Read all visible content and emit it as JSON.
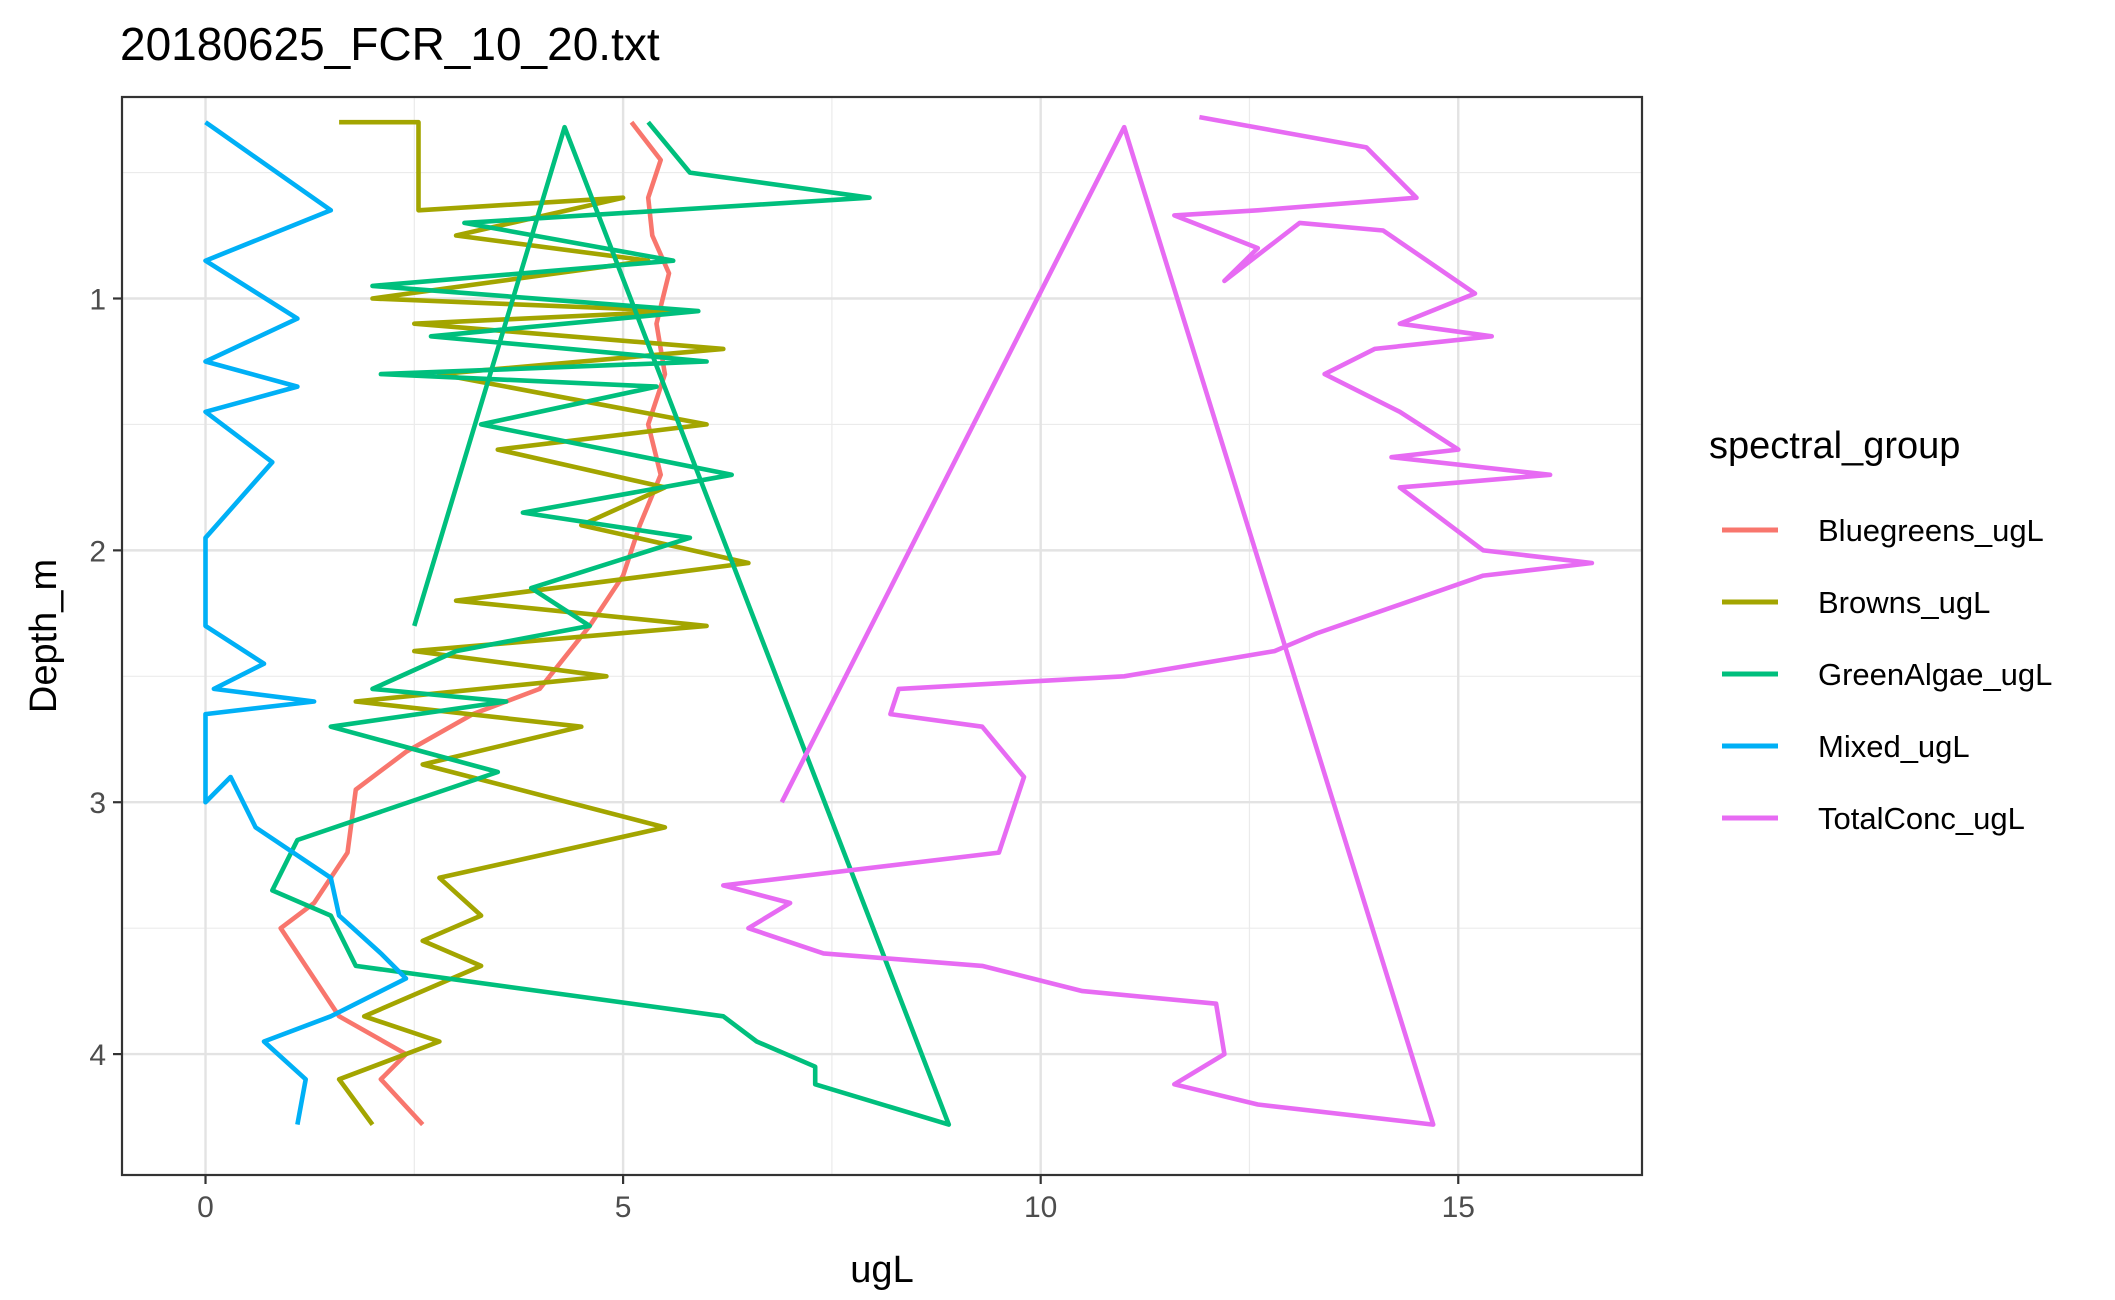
{
  "chart_data": {
    "type": "line",
    "title": "20180625_FCR_10_20.txt",
    "xlabel": "ugL",
    "ylabel": "Depth_m",
    "xlim": [
      -1.0,
      17.2
    ],
    "ylim": [
      0.2,
      4.48
    ],
    "y_reversed": true,
    "x_ticks": [
      0,
      5,
      10,
      15
    ],
    "y_ticks": [
      1,
      2,
      3,
      4
    ],
    "grid": true,
    "legend_title": "spectral_group",
    "legend_position": "right",
    "series": [
      {
        "name": "Bluegreens_ugL",
        "color": "#f8766d",
        "points": [
          [
            5.1,
            0.3
          ],
          [
            5.45,
            0.45
          ],
          [
            5.3,
            0.6
          ],
          [
            5.35,
            0.75
          ],
          [
            5.55,
            0.9
          ],
          [
            5.4,
            1.1
          ],
          [
            5.5,
            1.3
          ],
          [
            5.3,
            1.5
          ],
          [
            5.45,
            1.7
          ],
          [
            5.2,
            1.9
          ],
          [
            5.0,
            2.1
          ],
          [
            4.6,
            2.3
          ],
          [
            4.0,
            2.55
          ],
          [
            3.2,
            2.65
          ],
          [
            2.4,
            2.8
          ],
          [
            1.8,
            2.95
          ],
          [
            1.7,
            3.2
          ],
          [
            1.3,
            3.4
          ],
          [
            0.9,
            3.5
          ],
          [
            1.3,
            3.7
          ],
          [
            1.6,
            3.85
          ],
          [
            2.4,
            4.0
          ],
          [
            2.1,
            4.1
          ],
          [
            2.6,
            4.28
          ]
        ]
      },
      {
        "name": "Browns_ugL",
        "color": "#a3a500",
        "points": [
          [
            1.6,
            0.3
          ],
          [
            2.55,
            0.3
          ],
          [
            2.55,
            0.65
          ],
          [
            5.0,
            0.6
          ],
          [
            3.0,
            0.75
          ],
          [
            5.3,
            0.85
          ],
          [
            2.0,
            1.0
          ],
          [
            5.7,
            1.05
          ],
          [
            2.5,
            1.1
          ],
          [
            6.2,
            1.2
          ],
          [
            2.8,
            1.3
          ],
          [
            6.0,
            1.5
          ],
          [
            3.5,
            1.6
          ],
          [
            5.5,
            1.75
          ],
          [
            4.5,
            1.9
          ],
          [
            6.5,
            2.05
          ],
          [
            3.0,
            2.2
          ],
          [
            6.0,
            2.3
          ],
          [
            2.5,
            2.4
          ],
          [
            4.8,
            2.5
          ],
          [
            1.8,
            2.6
          ],
          [
            4.5,
            2.7
          ],
          [
            2.6,
            2.85
          ],
          [
            5.5,
            3.1
          ],
          [
            2.8,
            3.3
          ],
          [
            3.3,
            3.45
          ],
          [
            2.6,
            3.55
          ],
          [
            3.3,
            3.65
          ],
          [
            1.9,
            3.85
          ],
          [
            2.8,
            3.95
          ],
          [
            1.6,
            4.1
          ],
          [
            2.0,
            4.28
          ]
        ]
      },
      {
        "name": "GreenAlgae_ugL",
        "color": "#00bf7d",
        "points": [
          [
            5.3,
            0.3
          ],
          [
            5.8,
            0.5
          ],
          [
            7.95,
            0.6
          ],
          [
            3.1,
            0.7
          ],
          [
            5.6,
            0.85
          ],
          [
            2.0,
            0.95
          ],
          [
            5.9,
            1.05
          ],
          [
            2.7,
            1.15
          ],
          [
            6.0,
            1.25
          ],
          [
            2.1,
            1.3
          ],
          [
            5.4,
            1.35
          ],
          [
            3.3,
            1.5
          ],
          [
            6.3,
            1.7
          ],
          [
            3.8,
            1.85
          ],
          [
            5.8,
            1.95
          ],
          [
            3.9,
            2.15
          ],
          [
            4.6,
            2.3
          ],
          [
            3.0,
            2.4
          ],
          [
            2.0,
            2.55
          ],
          [
            3.6,
            2.6
          ],
          [
            1.5,
            2.7
          ],
          [
            3.5,
            2.88
          ],
          [
            1.1,
            3.15
          ],
          [
            0.8,
            3.35
          ],
          [
            1.5,
            3.45
          ],
          [
            1.8,
            3.65
          ],
          [
            4.0,
            3.75
          ],
          [
            6.2,
            3.85
          ],
          [
            6.6,
            3.95
          ],
          [
            7.3,
            4.05
          ],
          [
            7.3,
            4.12
          ],
          [
            8.9,
            4.28
          ],
          [
            4.3,
            0.32
          ],
          [
            2.5,
            2.3
          ]
        ]
      },
      {
        "name": "Mixed_ugL",
        "color": "#00b0f6",
        "points": [
          [
            0.0,
            0.3
          ],
          [
            1.5,
            0.65
          ],
          [
            0.0,
            0.85
          ],
          [
            1.1,
            1.08
          ],
          [
            0.0,
            1.25
          ],
          [
            1.1,
            1.35
          ],
          [
            0.0,
            1.45
          ],
          [
            0.8,
            1.65
          ],
          [
            0.0,
            1.95
          ],
          [
            0.0,
            2.3
          ],
          [
            0.7,
            2.45
          ],
          [
            0.1,
            2.55
          ],
          [
            1.3,
            2.6
          ],
          [
            0.0,
            2.65
          ],
          [
            0.0,
            3.0
          ],
          [
            0.3,
            2.9
          ],
          [
            0.6,
            3.1
          ],
          [
            1.5,
            3.3
          ],
          [
            1.6,
            3.45
          ],
          [
            2.1,
            3.6
          ],
          [
            2.4,
            3.7
          ],
          [
            1.5,
            3.85
          ],
          [
            0.7,
            3.95
          ],
          [
            1.2,
            4.1
          ],
          [
            1.1,
            4.28
          ]
        ]
      },
      {
        "name": "TotalConc_ugL",
        "color": "#e76bf3",
        "points": [
          [
            11.9,
            0.28
          ],
          [
            13.9,
            0.4
          ],
          [
            14.5,
            0.6
          ],
          [
            12.6,
            0.65
          ],
          [
            11.6,
            0.67
          ],
          [
            12.6,
            0.8
          ],
          [
            12.2,
            0.93
          ],
          [
            13.1,
            0.7
          ],
          [
            14.1,
            0.73
          ],
          [
            15.2,
            0.98
          ],
          [
            14.3,
            1.1
          ],
          [
            15.4,
            1.15
          ],
          [
            14.0,
            1.2
          ],
          [
            13.4,
            1.3
          ],
          [
            14.3,
            1.45
          ],
          [
            15.0,
            1.6
          ],
          [
            14.2,
            1.63
          ],
          [
            16.1,
            1.7
          ],
          [
            14.3,
            1.75
          ],
          [
            15.3,
            2.0
          ],
          [
            16.6,
            2.05
          ],
          [
            15.3,
            2.1
          ],
          [
            13.3,
            2.33
          ],
          [
            12.8,
            2.4
          ],
          [
            11.0,
            2.5
          ],
          [
            8.3,
            2.55
          ],
          [
            8.2,
            2.65
          ],
          [
            9.3,
            2.7
          ],
          [
            9.8,
            2.9
          ],
          [
            9.5,
            3.2
          ],
          [
            6.2,
            3.33
          ],
          [
            7.0,
            3.4
          ],
          [
            6.5,
            3.5
          ],
          [
            7.4,
            3.6
          ],
          [
            9.3,
            3.65
          ],
          [
            10.5,
            3.75
          ],
          [
            12.1,
            3.8
          ],
          [
            12.2,
            4.0
          ],
          [
            11.6,
            4.12
          ],
          [
            12.6,
            4.2
          ],
          [
            14.7,
            4.28
          ],
          [
            11.0,
            0.32
          ],
          [
            6.9,
            3.0
          ]
        ]
      }
    ]
  }
}
